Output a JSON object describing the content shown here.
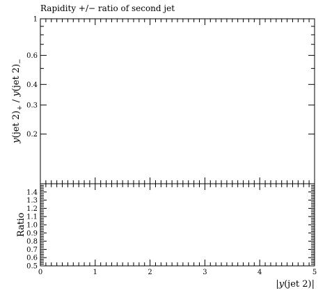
{
  "chart_data": [
    {
      "type": "line",
      "title": "Rapidity +/− ratio of second jet",
      "ylabel_parts": [
        "y",
        "(jet 2)",
        "+",
        " / ",
        "y",
        "(jet 2)",
        "−"
      ],
      "xlabel": "",
      "yscale": "log",
      "ylim": [
        0.1,
        1
      ],
      "xlim": [
        0,
        5
      ],
      "y_tick_labels": [
        {
          "value": 1,
          "label": "1"
        },
        {
          "value": 0.6,
          "label": "0.6"
        },
        {
          "value": 0.4,
          "label": "0.4"
        },
        {
          "value": 0.3,
          "label": "0.3"
        },
        {
          "value": 0.2,
          "label": "0.2"
        }
      ],
      "series": []
    },
    {
      "type": "line",
      "title": "",
      "ylabel": "Ratio",
      "xlabel_parts": [
        "|",
        "y",
        "(jet 2)",
        "|"
      ],
      "yscale": "linear",
      "xlim": [
        0,
        5
      ],
      "ylim": [
        0.5,
        1.5
      ],
      "x_ticks": [
        0,
        1,
        2,
        3,
        4,
        5
      ],
      "x_tick_labels": [
        "0",
        "1",
        "2",
        "3",
        "4",
        "5"
      ],
      "y_ticks": [
        0.5,
        0.6,
        0.7,
        0.8,
        0.9,
        1.0,
        1.1,
        1.2,
        1.3,
        1.4
      ],
      "y_tick_labels": [
        "0.5",
        "0.6",
        "0.7",
        "0.8",
        "0.9",
        "1.0",
        "1.1",
        "1.2",
        "1.3",
        "1.4"
      ],
      "series": []
    }
  ]
}
